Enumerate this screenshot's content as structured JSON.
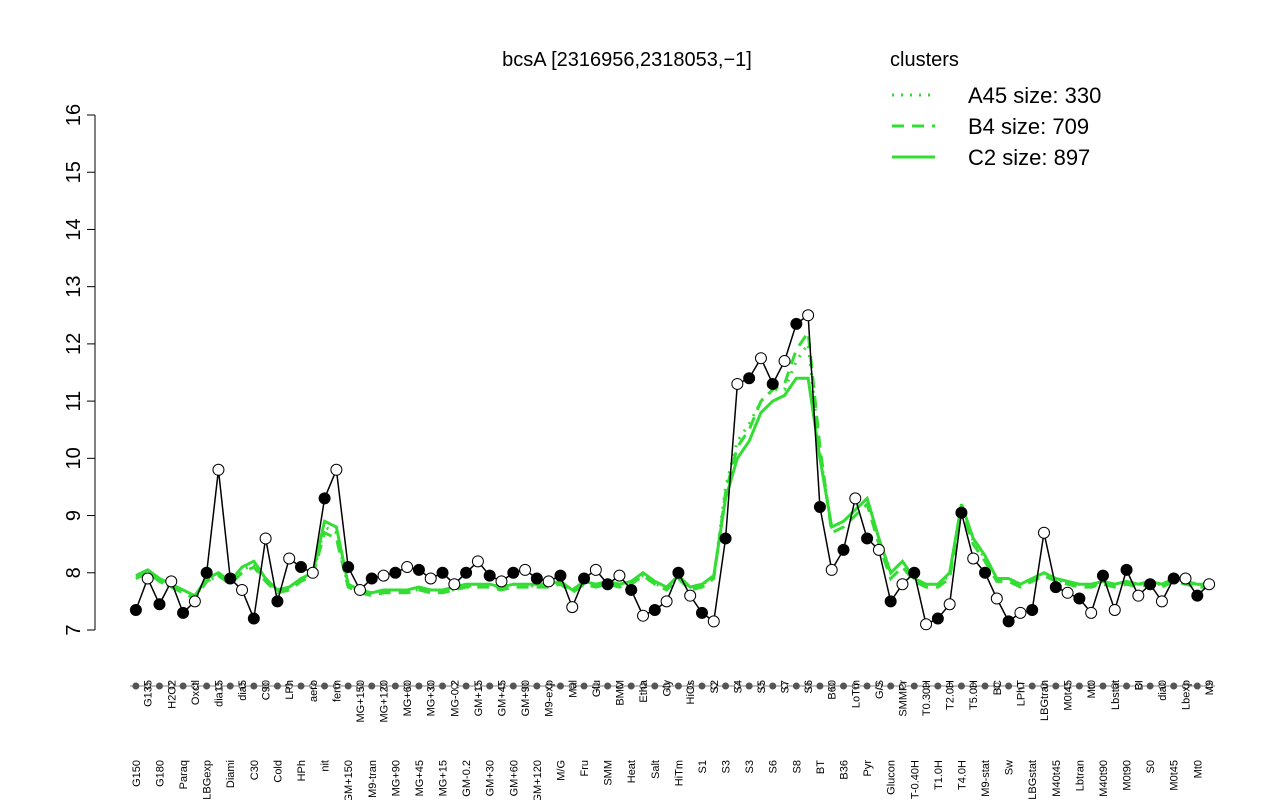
{
  "chart_data": {
    "type": "line",
    "title": "bcsA [2316956,2318053,−1]",
    "legend_title": "clusters",
    "legend_position": "top-right",
    "ylim": [
      7,
      16
    ],
    "yticks": [
      7,
      8,
      9,
      10,
      11,
      12,
      13,
      14,
      15,
      16
    ],
    "color": "#000000",
    "categories": [
      "G150",
      "G135",
      "G180",
      "H2O2",
      "Paraq",
      "Oxctl",
      "LBGexp",
      "dia15",
      "Diami",
      "dia5",
      "C30",
      "C90",
      "Cold",
      "LPh",
      "HPh",
      "aero",
      "nit",
      "ferm",
      "GM+150",
      "MG+150",
      "M9-tran",
      "MG+120",
      "MG+90",
      "MG+60",
      "MG+45",
      "MG+30",
      "MG+15",
      "MG-0.2",
      "GM-0.2",
      "GM+15",
      "GM+30",
      "GM+45",
      "GM+60",
      "GM+90",
      "GM+120",
      "M9-exp",
      "M/G",
      "Mal",
      "Fru",
      "Glu",
      "SMM",
      "BMM",
      "Heat",
      "Etha",
      "Salt",
      "Gly",
      "HiTm",
      "HiOs",
      "S1",
      "S2",
      "S3",
      "S4",
      "S3",
      "S5",
      "S6",
      "S7",
      "S8",
      "S6",
      "BT",
      "B60",
      "B36",
      "LoTm",
      "Pyr",
      "G/S",
      "Glucon",
      "SMMPr",
      "T-0.40H",
      "T0.30H",
      "T1.0H",
      "T2.0H",
      "T4.0H",
      "T5.0H",
      "M9-stat",
      "BC",
      "Sw",
      "LPhT",
      "LBGstat",
      "LBGtran",
      "M40t45",
      "M0t45",
      "Lbtran",
      "Mt0",
      "M40t90",
      "Lbstat",
      "M0t90",
      "BI",
      "S0",
      "dia0",
      "M0t45",
      "Lbexp",
      "Mt0",
      "M9"
    ],
    "values": [
      7.35,
      7.9,
      7.45,
      7.85,
      7.3,
      7.5,
      8.0,
      9.8,
      7.9,
      7.7,
      7.2,
      8.6,
      7.5,
      8.25,
      8.1,
      8.0,
      9.3,
      9.8,
      8.1,
      7.7,
      7.9,
      7.95,
      8.0,
      8.1,
      8.05,
      7.9,
      8.0,
      7.8,
      8.0,
      8.2,
      7.95,
      7.85,
      8.0,
      8.05,
      7.9,
      7.85,
      7.95,
      7.4,
      7.9,
      8.05,
      7.8,
      7.95,
      7.7,
      7.25,
      7.35,
      7.5,
      8.0,
      7.6,
      7.3,
      7.15,
      8.6,
      11.3,
      11.4,
      11.75,
      11.3,
      11.7,
      12.35,
      12.5,
      9.15,
      8.05,
      8.4,
      9.3,
      8.6,
      8.4,
      7.5,
      7.8,
      8.0,
      7.1,
      7.2,
      7.45,
      9.05,
      8.25,
      8.0,
      7.55,
      7.15,
      7.3,
      7.35,
      8.7,
      7.75,
      7.65,
      7.55,
      7.3,
      7.95,
      7.35,
      8.05,
      7.6,
      7.8,
      7.5,
      7.9,
      7.9,
      7.6,
      7.8
    ],
    "series": [
      {
        "name": "A45 size: 330",
        "style": "dotted",
        "color": "#33dd33",
        "values": [
          7.9,
          8.0,
          7.85,
          7.75,
          7.7,
          7.6,
          7.85,
          7.95,
          7.8,
          8.05,
          8.15,
          7.85,
          7.7,
          7.75,
          7.85,
          7.95,
          8.8,
          8.7,
          7.75,
          7.7,
          7.65,
          7.7,
          7.7,
          7.7,
          7.7,
          7.7,
          7.7,
          7.7,
          7.75,
          7.8,
          7.75,
          7.75,
          7.8,
          7.8,
          7.75,
          7.8,
          7.8,
          7.7,
          7.8,
          7.8,
          7.8,
          7.75,
          7.8,
          7.95,
          7.8,
          7.75,
          7.9,
          7.75,
          7.8,
          7.9,
          9.5,
          10.3,
          10.6,
          11.0,
          11.2,
          11.2,
          11.7,
          12.0,
          10.1,
          8.8,
          8.9,
          9.1,
          9.3,
          8.6,
          8.0,
          8.2,
          7.9,
          7.8,
          7.8,
          7.95,
          9.15,
          8.55,
          8.25,
          7.9,
          7.9,
          7.8,
          7.85,
          8.0,
          7.9,
          7.8,
          7.8,
          7.8,
          7.8,
          7.8,
          7.85,
          7.8,
          7.8,
          7.8,
          7.85,
          7.85,
          7.8,
          7.8
        ]
      },
      {
        "name": "B4 size: 709",
        "style": "dashed",
        "color": "#33dd33",
        "values": [
          7.9,
          8.0,
          7.85,
          7.75,
          7.65,
          7.55,
          7.85,
          7.95,
          7.8,
          8.0,
          8.1,
          7.85,
          7.65,
          7.7,
          7.85,
          7.95,
          8.7,
          8.6,
          7.75,
          7.65,
          7.6,
          7.65,
          7.65,
          7.65,
          7.7,
          7.65,
          7.65,
          7.7,
          7.75,
          7.75,
          7.75,
          7.7,
          7.75,
          7.75,
          7.75,
          7.75,
          7.8,
          7.65,
          7.8,
          7.75,
          7.8,
          7.75,
          7.8,
          7.95,
          7.8,
          7.7,
          7.9,
          7.7,
          7.75,
          7.9,
          9.4,
          10.2,
          10.5,
          11.0,
          11.2,
          11.3,
          11.9,
          12.2,
          10.2,
          8.7,
          8.8,
          9.0,
          9.2,
          8.5,
          7.9,
          8.1,
          7.85,
          7.75,
          7.75,
          7.9,
          9.1,
          8.5,
          8.2,
          7.85,
          7.85,
          7.75,
          7.85,
          7.95,
          7.85,
          7.8,
          7.75,
          7.75,
          7.8,
          7.75,
          7.8,
          7.75,
          7.8,
          7.75,
          7.85,
          7.8,
          7.75,
          7.75
        ]
      },
      {
        "name": "C2 size: 897",
        "style": "solid",
        "color": "#33dd33",
        "values": [
          7.95,
          8.05,
          7.9,
          7.8,
          7.7,
          7.6,
          7.9,
          8.0,
          7.85,
          8.1,
          8.2,
          7.9,
          7.7,
          7.75,
          7.9,
          8.0,
          8.9,
          8.8,
          7.8,
          7.7,
          7.65,
          7.7,
          7.7,
          7.7,
          7.75,
          7.7,
          7.7,
          7.75,
          7.8,
          7.8,
          7.8,
          7.75,
          7.8,
          7.8,
          7.8,
          7.8,
          7.85,
          7.7,
          7.85,
          7.8,
          7.85,
          7.8,
          7.85,
          8.0,
          7.85,
          7.75,
          7.95,
          7.75,
          7.8,
          7.95,
          9.3,
          10.0,
          10.3,
          10.8,
          11.0,
          11.1,
          11.4,
          11.4,
          10.0,
          8.8,
          8.9,
          9.1,
          9.3,
          8.6,
          8.0,
          8.2,
          7.9,
          7.8,
          7.8,
          8.0,
          9.2,
          8.6,
          8.3,
          7.9,
          7.9,
          7.8,
          7.9,
          8.0,
          7.9,
          7.85,
          7.8,
          7.8,
          7.85,
          7.8,
          7.85,
          7.8,
          7.85,
          7.8,
          7.9,
          7.85,
          7.8,
          7.8
        ]
      }
    ]
  }
}
